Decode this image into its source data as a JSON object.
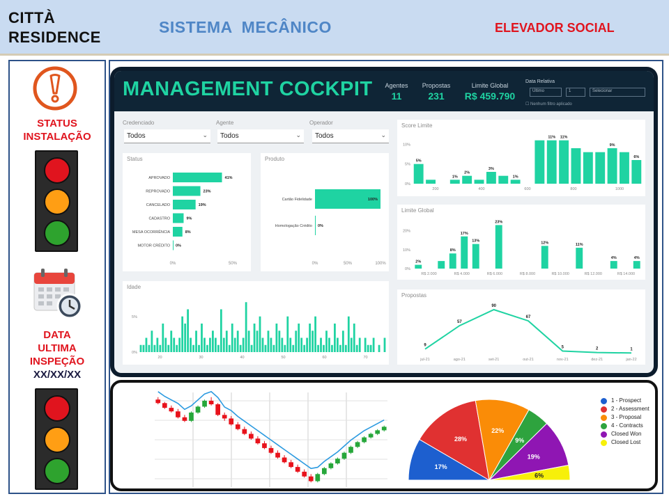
{
  "header": {
    "app_title": "CITTÀ\nRESIDENCE",
    "system_title": "SISTEMA  MECÂNICO",
    "elevator_label": "ELEVADOR SOCIAL"
  },
  "sidebar": {
    "status_label": "STATUS\nINSTALAÇÃO",
    "inspection_label": "DATA\nULTIMA\nINSPEÇÃO",
    "inspection_date": "XX/XX/XX",
    "colors": {
      "red": "#e0141e",
      "amber": "#ff9e14",
      "green": "#2ea32e"
    }
  },
  "cockpit": {
    "title": "MANAGEMENT COCKPIT",
    "kpis": [
      {
        "label": "Agentes",
        "value": "11"
      },
      {
        "label": "Propostas",
        "value": "231"
      },
      {
        "label": "Limite Global",
        "value": "R$ 459.790"
      }
    ],
    "date_label": "Data Relativa",
    "date_controls": [
      "Último",
      "1",
      "Selecionar"
    ],
    "checkbox_label": "Nenhum filtro aplicado",
    "filters": [
      {
        "label": "Credenciado",
        "value": "Todos"
      },
      {
        "label": "Agente",
        "value": "Todos"
      },
      {
        "label": "Operador",
        "value": "Todos"
      }
    ],
    "accent": "#1fd3a2"
  },
  "chart_data": [
    {
      "type": "bar",
      "title": "Status",
      "orientation": "horizontal",
      "categories": [
        "APROVADO",
        "REPROVADO",
        "CANCELADO",
        "CADASTRO",
        "MESA OCORRÊNCIA",
        "MOTOR CRÉDITO"
      ],
      "values": [
        41,
        23,
        19,
        9,
        8,
        0
      ],
      "value_labels": [
        "41%",
        "23%",
        "19%",
        "9%",
        "8%",
        "0%"
      ],
      "xticks": [
        "0%",
        "50%"
      ],
      "xlim": [
        0,
        50
      ]
    },
    {
      "type": "bar",
      "title": "Produto",
      "orientation": "horizontal",
      "categories": [
        "Cartão Fidelidade",
        "Homologação Crédito"
      ],
      "values": [
        100,
        0
      ],
      "value_labels": [
        "100%",
        "0%"
      ],
      "xticks": [
        "0%",
        "50%",
        "100%"
      ],
      "xlim": [
        0,
        100
      ]
    },
    {
      "type": "bar",
      "title": "Score Limite",
      "values": [
        5,
        1,
        0,
        1,
        2,
        1,
        3,
        2,
        1,
        0,
        11,
        11,
        11,
        9,
        8,
        8,
        9,
        8,
        6
      ],
      "value_labels": [
        "5%",
        "",
        "",
        "1%",
        "2%",
        "",
        "3%",
        "",
        "1%",
        "",
        "",
        "11%",
        "11%",
        "",
        "",
        "",
        "9%",
        "",
        "6%"
      ],
      "xticks": [
        "200",
        "400",
        "600",
        "800",
        "1000"
      ],
      "yticks": [
        "0%",
        "5%",
        "10%"
      ],
      "ylim": [
        0,
        12
      ]
    },
    {
      "type": "bar",
      "title": "Limite Global",
      "values": [
        2,
        0,
        4,
        8,
        17,
        13,
        0,
        23,
        0,
        0,
        0,
        12,
        0,
        0,
        11,
        0,
        0,
        4,
        0,
        4
      ],
      "value_labels": [
        "2%",
        "",
        "",
        "8%",
        "17%",
        "13%",
        "",
        "23%",
        "",
        "",
        "",
        "12%",
        "",
        "",
        "11%",
        "",
        "",
        "4%",
        "",
        "4%"
      ],
      "xticks": [
        "R$ 2.000",
        "R$ 4.000",
        "R$ 6.000",
        "R$ 8.000",
        "R$ 10.000",
        "R$ 12.000",
        "R$ 14.000"
      ],
      "yticks": [
        "0%",
        "10%",
        "20%"
      ],
      "ylim": [
        0,
        25
      ]
    },
    {
      "type": "bar",
      "title": "Idade",
      "values": [
        1,
        1,
        2,
        1,
        3,
        1,
        2,
        1,
        4,
        2,
        1,
        3,
        2,
        1,
        2,
        5,
        4,
        6,
        2,
        1,
        3,
        1,
        4,
        2,
        1,
        2,
        3,
        2,
        1,
        6,
        2,
        3,
        1,
        4,
        2,
        3,
        1,
        2,
        7,
        3,
        1,
        4,
        3,
        5,
        2,
        1,
        3,
        2,
        1,
        4,
        3,
        2,
        1,
        5,
        2,
        1,
        3,
        4,
        2,
        1,
        2,
        4,
        3,
        5,
        1,
        2,
        1,
        3,
        2,
        1,
        4,
        2,
        1,
        3,
        1,
        5,
        2,
        4,
        1,
        2,
        0,
        2,
        1,
        1,
        2,
        0,
        1,
        0,
        2
      ],
      "xticks": [
        "20",
        "30",
        "40",
        "50",
        "60",
        "70"
      ],
      "yticks": [
        "0%",
        "5%"
      ],
      "ylim": [
        0,
        8
      ]
    },
    {
      "type": "line",
      "title": "Propostas",
      "categories": [
        "jul-21",
        "ago-21",
        "set-21",
        "out-21",
        "nov-21",
        "dez-21",
        "jan-22"
      ],
      "values": [
        9,
        57,
        90,
        67,
        5,
        2,
        1
      ],
      "value_labels": [
        "9",
        "57",
        "90",
        "67",
        "5",
        "2",
        "1"
      ],
      "ylim": [
        0,
        100
      ]
    },
    {
      "type": "candlestick",
      "values": [
        [
          74,
          76,
          70,
          71
        ],
        [
          71,
          72,
          66,
          67
        ],
        [
          67,
          69,
          63,
          64
        ],
        [
          64,
          66,
          58,
          59
        ],
        [
          59,
          61,
          55,
          56
        ],
        [
          56,
          64,
          55,
          63
        ],
        [
          63,
          69,
          62,
          68
        ],
        [
          68,
          74,
          67,
          73
        ],
        [
          73,
          76,
          69,
          70
        ],
        [
          70,
          71,
          60,
          61
        ],
        [
          61,
          63,
          56,
          58
        ],
        [
          58,
          60,
          52,
          53
        ],
        [
          53,
          55,
          48,
          49
        ],
        [
          49,
          51,
          44,
          45
        ],
        [
          45,
          47,
          40,
          41
        ],
        [
          41,
          43,
          36,
          37
        ],
        [
          37,
          39,
          32,
          33
        ],
        [
          33,
          35,
          28,
          29
        ],
        [
          29,
          31,
          24,
          25
        ],
        [
          25,
          27,
          20,
          21
        ],
        [
          21,
          23,
          16,
          17
        ],
        [
          17,
          19,
          12,
          13
        ],
        [
          13,
          15,
          8,
          9
        ],
        [
          9,
          11,
          4,
          5
        ],
        [
          5,
          12,
          4,
          11
        ],
        [
          11,
          17,
          10,
          16
        ],
        [
          16,
          21,
          15,
          20
        ],
        [
          20,
          25,
          19,
          24
        ],
        [
          24,
          30,
          23,
          29
        ],
        [
          29,
          35,
          28,
          34
        ],
        [
          34,
          39,
          33,
          38
        ],
        [
          38,
          43,
          37,
          42
        ],
        [
          42,
          46,
          41,
          45
        ],
        [
          45,
          49,
          44,
          48
        ],
        [
          48,
          52,
          47,
          51
        ]
      ],
      "colors": {
        "up": "#26a73a",
        "down": "#e8121b",
        "trend": "#2b9ae0"
      }
    },
    {
      "type": "pie",
      "subtype": "half-pie",
      "categories": [
        "1 - Prospect",
        "2 - Assessment",
        "3 - Proposal",
        "4 - Contracts",
        "Closed Won",
        "Closed Lost"
      ],
      "values": [
        17,
        28,
        22,
        9,
        19,
        6
      ],
      "value_labels": [
        "17%",
        "28%",
        "22%",
        "9%",
        "19%",
        "6%"
      ],
      "colors": [
        "#1d5fcf",
        "#e03131",
        "#fa8c07",
        "#2ea33e",
        "#8f16b3",
        "#f7f00a"
      ]
    }
  ]
}
